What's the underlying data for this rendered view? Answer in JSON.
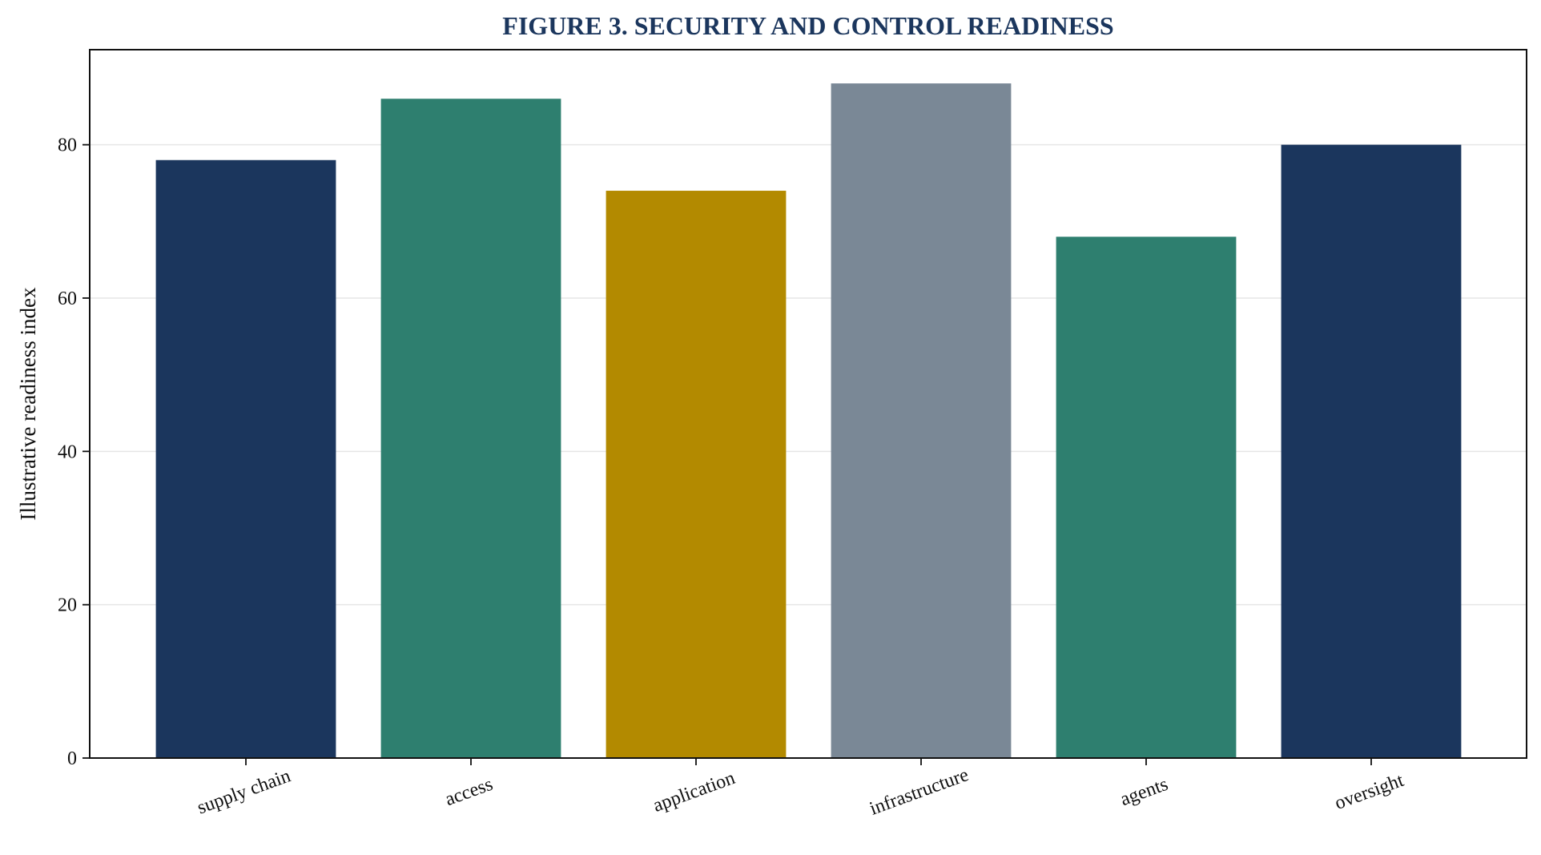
{
  "chart_data": {
    "type": "bar",
    "title": "FIGURE 3. SECURITY AND CONTROL READINESS",
    "xlabel": "",
    "ylabel": "Illustrative readiness index",
    "categories": [
      "supply chain",
      "access",
      "application",
      "infrastructure",
      "agents",
      "oversight"
    ],
    "values": [
      78,
      86,
      74,
      88,
      68,
      80
    ],
    "bar_colors": [
      "#1b365d",
      "#2e7f6f",
      "#b38a00",
      "#7a8896",
      "#2e7f6f",
      "#1b365d"
    ],
    "ylim": [
      0,
      92.4
    ],
    "yticks": [
      0,
      20,
      40,
      60,
      80
    ],
    "ytick_labels": [
      "0",
      "20",
      "40",
      "60",
      "80"
    ],
    "grid": "horizontal",
    "title_color": "#1b365d"
  }
}
